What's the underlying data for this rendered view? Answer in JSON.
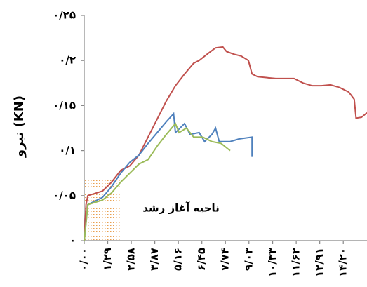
{
  "chart_data": {
    "type": "line",
    "y_label": "نیرو (KN)",
    "annotation": "ناحیه آغاز رشد",
    "xlim": [
      0,
      15.5
    ],
    "ylim": [
      0,
      0.25
    ],
    "yticks": [
      {
        "value": 0,
        "label": "۰"
      },
      {
        "value": 0.05,
        "label": "۰/۰۵"
      },
      {
        "value": 0.1,
        "label": "۰/۱"
      },
      {
        "value": 0.15,
        "label": "۰/۱۵"
      },
      {
        "value": 0.2,
        "label": "۰/۲"
      },
      {
        "value": 0.25,
        "label": "۰/۲۵"
      }
    ],
    "xticks": [
      {
        "value": 0,
        "label": "۰/۰۰"
      },
      {
        "value": 1.29,
        "label": "۱/۲۹"
      },
      {
        "value": 2.58,
        "label": "۲/۵۸"
      },
      {
        "value": 3.87,
        "label": "۳/۸۷"
      },
      {
        "value": 5.16,
        "label": "۵/۱۶"
      },
      {
        "value": 6.45,
        "label": "۶/۴۵"
      },
      {
        "value": 7.74,
        "label": "۷/۷۴"
      },
      {
        "value": 9.03,
        "label": "۹/۰۳"
      },
      {
        "value": 10.33,
        "label": "۱۰/۳۳"
      },
      {
        "value": 11.62,
        "label": "۱۱/۶۲"
      },
      {
        "value": 12.91,
        "label": "۱۲/۹۱"
      },
      {
        "value": 14.2,
        "label": "۱۴/۲۰"
      }
    ],
    "series": [
      {
        "color": "#c0504d",
        "x": [
          0,
          0.1,
          0.2,
          1,
          1.5,
          2,
          2.5,
          3,
          3.5,
          4,
          4.5,
          5,
          5.5,
          6,
          6.3,
          6.8,
          7.2,
          7.6,
          7.8,
          8.2,
          8.6,
          9,
          9.2,
          9.5,
          10.5,
          11.5,
          12,
          12.5,
          13,
          13.5,
          14,
          14.5,
          14.8,
          14.9,
          15.2,
          15.5
        ],
        "values": [
          0,
          0.04,
          0.05,
          0.055,
          0.065,
          0.078,
          0.083,
          0.095,
          0.115,
          0.135,
          0.155,
          0.172,
          0.185,
          0.197,
          0.2,
          0.208,
          0.214,
          0.215,
          0.21,
          0.207,
          0.205,
          0.2,
          0.185,
          0.182,
          0.18,
          0.18,
          0.175,
          0.172,
          0.172,
          0.173,
          0.17,
          0.165,
          0.157,
          0.136,
          0.137,
          0.142
        ]
      },
      {
        "color": "#4f81bd",
        "x": [
          0,
          0.2,
          1,
          1.5,
          2,
          2.5,
          3,
          3.5,
          4,
          4.5,
          4.9,
          5,
          5.5,
          5.8,
          6.3,
          6.6,
          7,
          7.2,
          7.4,
          8,
          8.5,
          9.2,
          9.2
        ],
        "values": [
          0,
          0.04,
          0.048,
          0.06,
          0.075,
          0.087,
          0.095,
          0.108,
          0.12,
          0.132,
          0.141,
          0.12,
          0.13,
          0.118,
          0.12,
          0.11,
          0.118,
          0.125,
          0.11,
          0.11,
          0.113,
          0.115,
          0.093
        ]
      },
      {
        "color": "#9bbb59",
        "x": [
          0,
          0.2,
          1,
          1.5,
          2,
          2.5,
          3,
          3.5,
          4,
          4.5,
          5,
          5.2,
          5.6,
          6,
          6.5,
          7,
          7.5,
          8
        ],
        "values": [
          0,
          0.04,
          0.045,
          0.053,
          0.065,
          0.075,
          0.085,
          0.09,
          0.105,
          0.118,
          0.13,
          0.12,
          0.125,
          0.115,
          0.115,
          0.11,
          0.108,
          0.1
        ]
      }
    ]
  }
}
